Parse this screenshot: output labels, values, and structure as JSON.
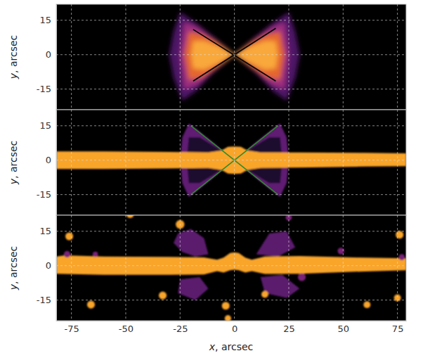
{
  "chart_data": [
    {
      "type": "image",
      "xlim": [
        -82,
        79
      ],
      "ylim": [
        -24,
        22
      ],
      "xticks": [
        -75,
        -50,
        -25,
        0,
        25,
        50,
        75
      ],
      "yticks": [
        -15,
        0,
        15
      ],
      "grid": true,
      "tick_labels": "y",
      "ylabel": "y, arcsec",
      "regions": [
        {
          "color": "#4e1466",
          "x": [
            0,
            10,
            18,
            25,
            28,
            30,
            28,
            24,
            18,
            10,
            0,
            -10,
            -18,
            -24,
            -28,
            -30,
            -28,
            -25,
            -18,
            -10
          ],
          "y": [
            0,
            8,
            14,
            18.5,
            10,
            0,
            -10,
            -20,
            -16,
            -8,
            0,
            -8,
            -16,
            -20,
            -10,
            0,
            10,
            18.5,
            14,
            8
          ]
        },
        {
          "color": "#9c2e7f",
          "x": [
            0,
            10,
            17,
            23,
            25,
            23,
            17,
            10,
            0,
            -10,
            -17,
            -23,
            -25,
            -23,
            -17,
            -10
          ],
          "y": [
            0,
            7,
            12,
            14,
            0,
            -15,
            -13,
            -7,
            0,
            -7,
            -13,
            -15,
            0,
            14,
            12,
            7
          ]
        },
        {
          "color": "#e4662f",
          "x": [
            0,
            8,
            15,
            21,
            23,
            21,
            15,
            8,
            0,
            -8,
            -15,
            -21,
            -23,
            -21,
            -15,
            -8
          ],
          "y": [
            0,
            5.5,
            9,
            10,
            0,
            -11,
            -10,
            -5.5,
            0,
            -5.5,
            -10,
            -11,
            0,
            10,
            9,
            5.5
          ]
        },
        {
          "color": "#f9a83a",
          "x": [
            0,
            7,
            14,
            19,
            20,
            19,
            14,
            7,
            0,
            -7,
            -14,
            -19,
            -20,
            -19,
            -14,
            -7
          ],
          "y": [
            0,
            3.5,
            6,
            6,
            0,
            -6,
            -6.5,
            -3.5,
            0,
            -3.5,
            -6.5,
            -6,
            0,
            6,
            6,
            3.5
          ]
        }
      ],
      "series": [
        {
          "color": "#000000",
          "x": [
            -19,
            19
          ],
          "values": [
            11,
            -11.5
          ]
        },
        {
          "color": "#000000",
          "x": [
            -19,
            19
          ],
          "values": [
            -11.5,
            11.5
          ]
        }
      ]
    },
    {
      "type": "image",
      "xlim": [
        -82,
        79
      ],
      "ylim": [
        -24,
        22
      ],
      "xticks": [
        -75,
        -50,
        -25,
        0,
        25,
        50,
        75
      ],
      "yticks": [
        -15,
        0,
        15
      ],
      "grid": true,
      "tick_labels": "y",
      "ylabel": "y, arcsec",
      "regions": [
        {
          "color": "#5e1a72",
          "x": [
            0,
            10,
            18,
            21,
            24,
            25,
            24,
            21,
            18,
            10,
            0,
            -10,
            -18,
            -21,
            -24,
            -25,
            -24,
            -21,
            -18,
            -10
          ],
          "y": [
            0,
            8,
            14,
            16,
            10,
            0,
            -10,
            -16,
            -14,
            -8,
            0,
            -8,
            -14,
            -16,
            -10,
            0,
            10,
            16,
            14,
            8
          ]
        },
        {
          "color": "#1a0b2e",
          "x": [
            0,
            9,
            16,
            21,
            22,
            21,
            16,
            9,
            0,
            -9,
            -16,
            -21,
            -22,
            -21,
            -16,
            -9
          ],
          "y": [
            0,
            6,
            10,
            10,
            0,
            -10,
            -10,
            -6,
            0,
            -6,
            -10,
            -10,
            0,
            10,
            10,
            6
          ]
        },
        {
          "color": "#f9a52c",
          "x": [
            -82,
            -60,
            -30,
            -12,
            -6,
            -3,
            0,
            3,
            6,
            12,
            30,
            60,
            79,
            79,
            60,
            30,
            12,
            6,
            3,
            0,
            -3,
            -6,
            -12,
            -30,
            -60,
            -82
          ],
          "y": [
            3.8,
            3.8,
            3.6,
            3.4,
            4.2,
            5.8,
            6,
            5.8,
            4.2,
            3.4,
            3.4,
            3.2,
            3.0,
            -2.6,
            -2.8,
            -3.2,
            -3.4,
            -4.2,
            -5.8,
            -6,
            -5.8,
            -4.2,
            -3.4,
            -3.6,
            -3.8,
            -3.8
          ]
        }
      ],
      "series": [
        {
          "color": "#2e8b2e",
          "x": [
            -20,
            20
          ],
          "values": [
            15,
            -15
          ]
        },
        {
          "color": "#2e8b2e",
          "x": [
            -20,
            20
          ],
          "values": [
            -15,
            15
          ]
        }
      ]
    },
    {
      "type": "image",
      "xlim": [
        -82,
        79
      ],
      "ylim": [
        -24,
        22
      ],
      "xticks": [
        -75,
        -50,
        -25,
        0,
        25,
        50,
        75
      ],
      "yticks": [
        -15,
        0,
        15
      ],
      "grid": true,
      "ylabel": "y, arcsec",
      "xlabel": "x, arcsec",
      "regions": [
        {
          "color": "#5b1a6e",
          "x": [
            -28,
            -26,
            -20,
            -14,
            -12,
            -18,
            -24
          ],
          "y": [
            10,
            14,
            16,
            12,
            5,
            4,
            6
          ]
        },
        {
          "color": "#5b1a6e",
          "x": [
            -26,
            -25,
            -16,
            -12,
            -18
          ],
          "y": [
            -12,
            -6,
            -5,
            -10,
            -15
          ]
        },
        {
          "color": "#5b1a6e",
          "x": [
            10,
            16,
            24,
            28,
            20
          ],
          "y": [
            5,
            14,
            15,
            8,
            4
          ]
        },
        {
          "color": "#5b1a6e",
          "x": [
            12,
            22,
            30,
            24,
            14
          ],
          "y": [
            -5,
            -4,
            -10,
            -14,
            -12
          ]
        },
        {
          "color": "#f9a52c",
          "x": [
            -82,
            -78,
            -60,
            -30,
            -14,
            -8,
            -5,
            -2,
            0,
            2,
            5,
            8,
            14,
            30,
            60,
            79,
            79,
            60,
            30,
            14,
            8,
            5,
            2,
            0,
            -2,
            -5,
            -8,
            -14,
            -30,
            -60,
            -82
          ],
          "y": [
            4,
            4.5,
            4,
            3.8,
            3.6,
            2.6,
            3.5,
            5.5,
            5.8,
            5.5,
            3.5,
            2.6,
            4,
            4.2,
            3.5,
            3.2,
            -2,
            -2.5,
            -3.5,
            -3.6,
            -2.4,
            -3,
            -2,
            -1.8,
            -2,
            -3,
            -2.4,
            -3.8,
            -4,
            -4,
            -3.5
          ]
        }
      ],
      "sources": {
        "x": [
          -48,
          -25,
          -76,
          -77,
          -64,
          -33,
          -66,
          -4,
          14,
          31,
          49,
          61,
          75,
          76,
          77,
          25,
          -3
        ],
        "y": [
          22.5,
          18,
          12.8,
          5,
          5,
          -13,
          -17,
          -17.5,
          -12.5,
          -5,
          6.4,
          -17,
          -14,
          13.5,
          3.7,
          21,
          -23
        ],
        "size": [
          1.8,
          2,
          1.8,
          1.5,
          1.2,
          1.8,
          1.8,
          1.8,
          1.6,
          1.8,
          1.5,
          1.6,
          1.6,
          1.8,
          1.4,
          1.4,
          1.5
        ],
        "colors": [
          "#f9a52c",
          "#f9a52c",
          "#f9a52c",
          "#7a2479",
          "#7a2479",
          "#f9a52c",
          "#f9a52c",
          "#f9a52c",
          "#f9a52c",
          "#7a2479",
          "#7a2479",
          "#f9a52c",
          "#f9a52c",
          "#f9a52c",
          "#7a2479",
          "#7a2479",
          "#f9a52c"
        ]
      }
    }
  ]
}
